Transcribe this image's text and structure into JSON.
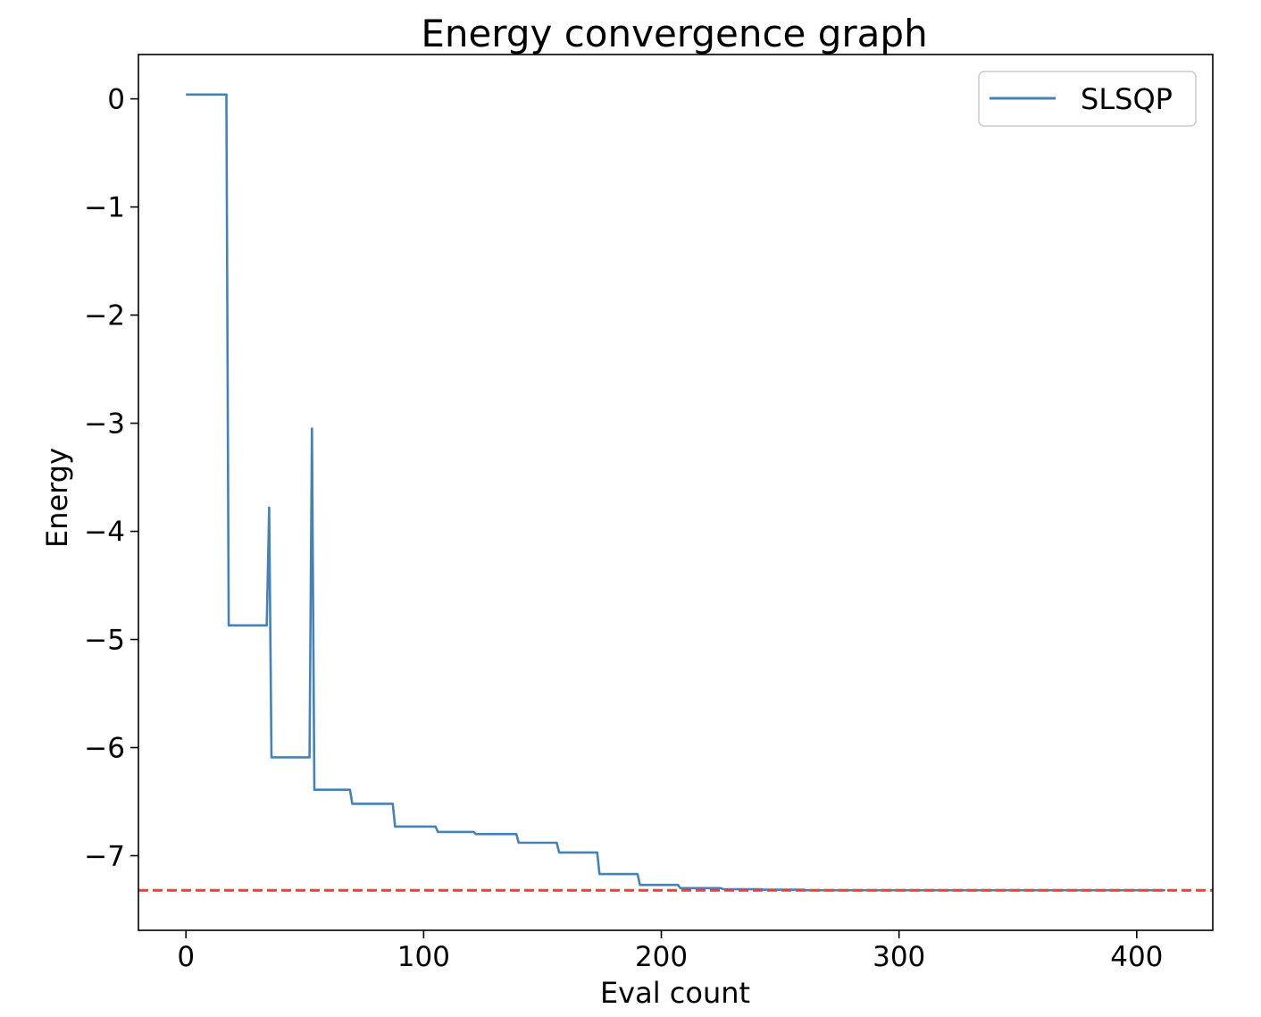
{
  "chart_data": {
    "type": "line",
    "title": "Energy convergence graph",
    "xlabel": "Eval count",
    "ylabel": "Energy",
    "xlim": [
      -20,
      432
    ],
    "ylim": [
      -7.69,
      0.41
    ],
    "xticks": [
      0,
      100,
      200,
      300,
      400
    ],
    "xtick_labels": [
      "0",
      "100",
      "200",
      "300",
      "400"
    ],
    "yticks": [
      0,
      -1,
      -2,
      -3,
      -4,
      -5,
      -6,
      -7
    ],
    "ytick_labels": [
      "0",
      "−1",
      "−2",
      "−3",
      "−4",
      "−5",
      "−6",
      "−7"
    ],
    "grid": false,
    "legend": {
      "position": "upper right",
      "entries": [
        "SLSQP"
      ]
    },
    "colors": {
      "series": "#4682b4",
      "reference": "#e8403b"
    },
    "series": [
      {
        "name": "SLSQP",
        "x": [
          0,
          17,
          18,
          34,
          35,
          36,
          52,
          53,
          54,
          69,
          70,
          87,
          88,
          105,
          106,
          121,
          122,
          139,
          140,
          156,
          157,
          173,
          174,
          190,
          191,
          207,
          208,
          225,
          226,
          242,
          243,
          260,
          261,
          412
        ],
        "values": [
          0.04,
          0.04,
          -4.87,
          -4.87,
          -3.78,
          -6.09,
          -6.09,
          -3.05,
          -6.39,
          -6.39,
          -6.52,
          -6.52,
          -6.73,
          -6.73,
          -6.78,
          -6.78,
          -6.8,
          -6.8,
          -6.88,
          -6.88,
          -6.97,
          -6.97,
          -7.17,
          -7.17,
          -7.27,
          -7.27,
          -7.3,
          -7.3,
          -7.31,
          -7.31,
          -7.315,
          -7.315,
          -7.32,
          -7.32
        ]
      }
    ],
    "reference_line": {
      "y": -7.32,
      "style": "dashed"
    }
  }
}
